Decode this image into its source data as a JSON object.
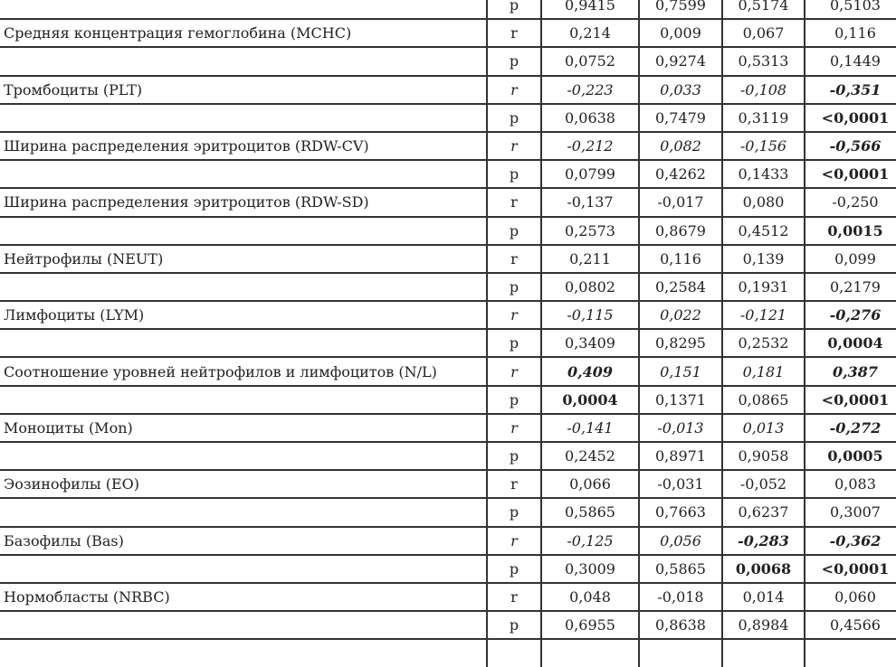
{
  "rows": [
    {
      "label": "",
      "stat": "p",
      "values": [
        "0,9415",
        "0,7599",
        "0,5174",
        "0,5103"
      ],
      "italic": false,
      "bold": []
    },
    {
      "label": "Средняя концентрация гемоглобина (MCHC)",
      "stat": "r",
      "values": [
        "0,214",
        "0,009",
        "0,067",
        "0,116"
      ],
      "italic": false,
      "bold": []
    },
    {
      "label": "",
      "stat": "p",
      "values": [
        "0,0752",
        "0,9274",
        "0,5313",
        "0,1449"
      ],
      "italic": false,
      "bold": []
    },
    {
      "label": "Тромбоциты (PLT)",
      "stat": "r",
      "values": [
        "-0,223",
        "0,033",
        "-0,108",
        "-0,351"
      ],
      "italic": true,
      "bold": [
        3
      ]
    },
    {
      "label": "",
      "stat": "p",
      "values": [
        "0,0638",
        "0,7479",
        "0,3119",
        "<0,0001"
      ],
      "italic": false,
      "bold": [
        3
      ]
    },
    {
      "label": "Ширина распределения эритроцитов (RDW-CV)",
      "stat": "r",
      "values": [
        "-0,212",
        "0,082",
        "-0,156",
        "-0,566"
      ],
      "italic": true,
      "bold": [
        3
      ]
    },
    {
      "label": "",
      "stat": "p",
      "values": [
        "0,0799",
        "0,4262",
        "0,1433",
        "<0,0001"
      ],
      "italic": false,
      "bold": [
        3
      ]
    },
    {
      "label": "Ширина распределения эритроцитов (RDW-SD)",
      "stat": "r",
      "values": [
        "-0,137",
        "-0,017",
        "0,080",
        "-0,250"
      ],
      "italic": false,
      "bold": []
    },
    {
      "label": "",
      "stat": "p",
      "values": [
        "0,2573",
        "0,8679",
        "0,4512",
        "0,0015"
      ],
      "italic": false,
      "bold": [
        3
      ]
    },
    {
      "label": "Нейтрофилы (NEUT)",
      "stat": "r",
      "values": [
        "0,211",
        "0,116",
        "0,139",
        "0,099"
      ],
      "italic": false,
      "bold": []
    },
    {
      "label": "",
      "stat": "p",
      "values": [
        "0,0802",
        "0,2584",
        "0,1931",
        "0,2179"
      ],
      "italic": false,
      "bold": []
    },
    {
      "label": "Лимфоциты (LYM)",
      "stat": "r",
      "values": [
        "-0,115",
        "0,022",
        "-0,121",
        "-0,276"
      ],
      "italic": true,
      "bold": [
        3
      ]
    },
    {
      "label": "",
      "stat": "p",
      "values": [
        "0,3409",
        "0,8295",
        "0,2532",
        "0,0004"
      ],
      "italic": false,
      "bold": [
        3
      ]
    },
    {
      "label": "Соотношение уровней нейтрофилов и лимфоцитов (N/L)",
      "stat": "r",
      "values": [
        "0,409",
        "0,151",
        "0,181",
        "0,387"
      ],
      "italic": true,
      "bold": [
        0,
        3
      ]
    },
    {
      "label": "",
      "stat": "p",
      "values": [
        "0,0004",
        "0,1371",
        "0,0865",
        "<0,0001"
      ],
      "italic": false,
      "bold": [
        0,
        3
      ]
    },
    {
      "label": "Моноциты (Mon)",
      "stat": "r",
      "values": [
        "-0,141",
        "-0,013",
        "0,013",
        "-0,272"
      ],
      "italic": true,
      "bold": [
        3
      ]
    },
    {
      "label": "",
      "stat": "p",
      "values": [
        "0,2452",
        "0,8971",
        "0,9058",
        "0,0005"
      ],
      "italic": false,
      "bold": [
        3
      ]
    },
    {
      "label": "Эозинофилы (EO)",
      "stat": "r",
      "values": [
        "0,066",
        "-0,031",
        "-0,052",
        "0,083"
      ],
      "italic": false,
      "bold": []
    },
    {
      "label": "",
      "stat": "p",
      "values": [
        "0,5865",
        "0,7663",
        "0,6237",
        "0,3007"
      ],
      "italic": false,
      "bold": []
    },
    {
      "label": "Базофилы (Bas)",
      "stat": "r",
      "values": [
        "-0,125",
        "0,056",
        "-0,283",
        "-0,362"
      ],
      "italic": true,
      "bold": [
        2,
        3
      ]
    },
    {
      "label": "",
      "stat": "p",
      "values": [
        "0,3009",
        "0,5865",
        "0,0068",
        "<0,0001"
      ],
      "italic": false,
      "bold": [
        2,
        3
      ]
    },
    {
      "label": "Нормобласты (NRBC)",
      "stat": "r",
      "values": [
        "0,048",
        "-0,018",
        "0,014",
        "0,060"
      ],
      "italic": false,
      "bold": []
    },
    {
      "label": "",
      "stat": "p",
      "values": [
        "0,6955",
        "0,8638",
        "0,8984",
        "0,4566"
      ],
      "italic": false,
      "bold": []
    }
  ]
}
